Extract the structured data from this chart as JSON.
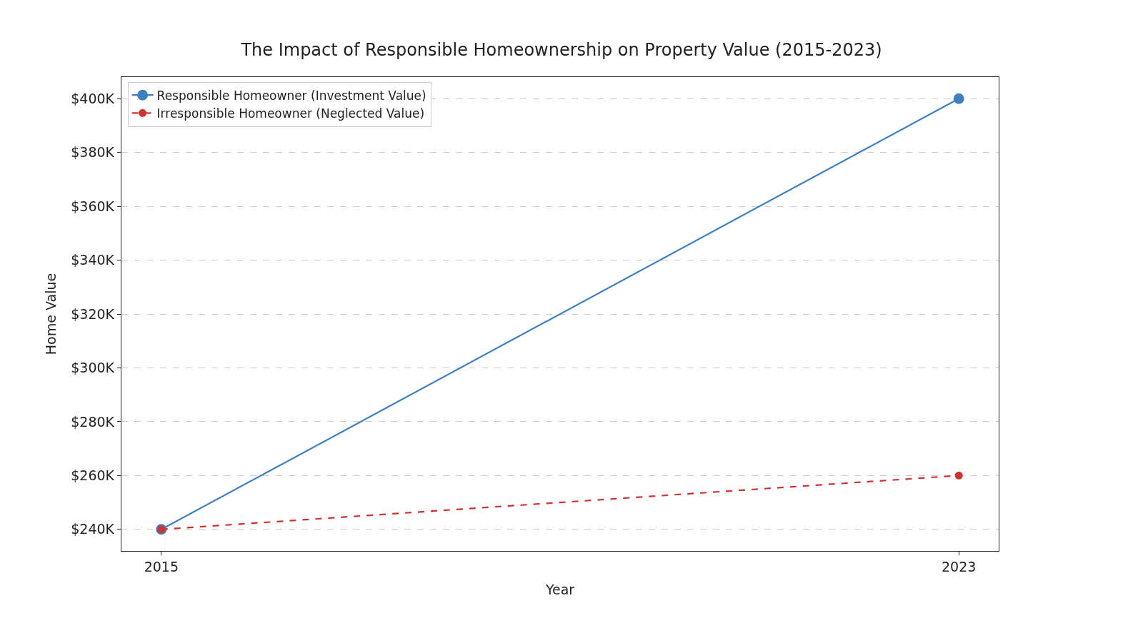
{
  "chart_data": {
    "type": "line",
    "title": "The Impact of Responsible Homeownership on Property Value (2015-2023)",
    "xlabel": "Year",
    "ylabel": "Home Value",
    "x": [
      2015,
      2023
    ],
    "series": [
      {
        "name": "Responsible Homeowner (Investment Value)",
        "color": "#3f7fbf",
        "values": [
          240000,
          400000
        ],
        "line_style": "solid"
      },
      {
        "name": "Irresponsible Homeowner (Neglected Value)",
        "color": "#cc3333",
        "values": [
          240000,
          260000
        ],
        "line_style": "dashed"
      }
    ],
    "xlim": [
      2014.6,
      2023.4
    ],
    "xticks": [
      2015,
      2023
    ],
    "ylim": [
      232000,
      408000
    ],
    "yticks": [
      {
        "value": 240000,
        "label": "$240K"
      },
      {
        "value": 260000,
        "label": "$260K"
      },
      {
        "value": 280000,
        "label": "$280K"
      },
      {
        "value": 300000,
        "label": "$300K"
      },
      {
        "value": 320000,
        "label": "$320K"
      },
      {
        "value": 340000,
        "label": "$340K"
      },
      {
        "value": 360000,
        "label": "$360K"
      },
      {
        "value": 380000,
        "label": "$380K"
      },
      {
        "value": 400000,
        "label": "$400K"
      }
    ],
    "grid": "y",
    "legend": "top left",
    "marker": "circle"
  }
}
